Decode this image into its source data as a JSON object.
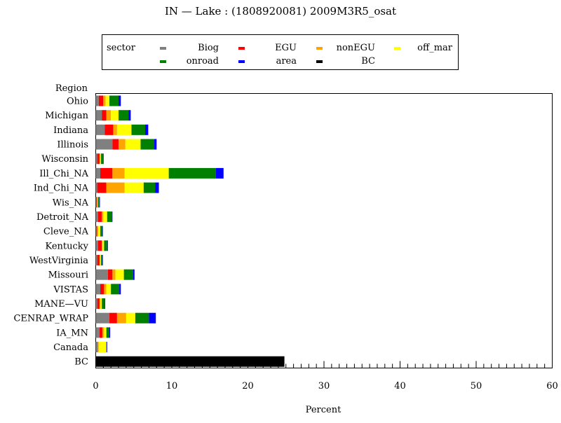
{
  "chart_data": {
    "type": "bar",
    "stacked": true,
    "orientation": "horizontal",
    "title": "IN — Lake : (1808920081) 2009M3R5_osat",
    "xlabel": "Percent",
    "ylabel": "Region",
    "xlim": [
      0,
      60
    ],
    "xticks": [
      0,
      10,
      20,
      30,
      40,
      50,
      60
    ],
    "legend": {
      "title": "sector",
      "position": "top"
    },
    "categories": [
      "Ohio",
      "Michigan",
      "Indiana",
      "Illinois",
      "Wisconsin",
      "Ill_Chi_NA",
      "Ind_Chi_NA",
      "Wis_NA",
      "Detroit_NA",
      "Cleve_NA",
      "Kentucky",
      "WestVirginia",
      "Missouri",
      "VISTAS",
      "MANE—VU",
      "CENRAP_WRAP",
      "IA_MN",
      "Canada",
      "BC"
    ],
    "series": [
      {
        "name": "Biog",
        "color": "#808080",
        "values": [
          0.4,
          0.8,
          1.2,
          2.2,
          0.2,
          0.6,
          0.2,
          0.1,
          0.3,
          0.1,
          0.3,
          0.2,
          1.6,
          0.6,
          0.2,
          1.8,
          0.5,
          0.3,
          0
        ]
      },
      {
        "name": "EGU",
        "color": "#ff0000",
        "values": [
          0.6,
          0.6,
          1.1,
          0.8,
          0.3,
          1.6,
          1.2,
          0.1,
          0.5,
          0.1,
          0.5,
          0.3,
          0.6,
          0.5,
          0.3,
          1.0,
          0.4,
          0,
          0
        ]
      },
      {
        "name": "nonEGU",
        "color": "#ffa500",
        "values": [
          0.3,
          0.6,
          0.5,
          0.9,
          0.1,
          1.6,
          2.4,
          0,
          0.2,
          0.1,
          0.1,
          0.1,
          0.4,
          0.3,
          0.1,
          1.2,
          0.2,
          0.1,
          0
        ]
      },
      {
        "name": "off_mar",
        "color": "#ffff00",
        "values": [
          0.5,
          1.0,
          1.9,
          2.0,
          0.1,
          5.8,
          2.5,
          0.1,
          0.5,
          0.3,
          0.2,
          0.1,
          1.1,
          0.6,
          0.2,
          1.2,
          0.3,
          1.0,
          0
        ]
      },
      {
        "name": "onroad",
        "color": "#008000",
        "values": [
          1.2,
          1.3,
          1.8,
          1.8,
          0.3,
          6.2,
          1.5,
          0.2,
          0.6,
          0.3,
          0.4,
          0.2,
          1.2,
          1.1,
          0.4,
          1.8,
          0.4,
          0,
          0
        ]
      },
      {
        "name": "area",
        "color": "#0000ff",
        "values": [
          0.3,
          0.3,
          0.4,
          0.3,
          0.05,
          1.0,
          0.5,
          0.05,
          0.1,
          0.05,
          0.1,
          0.05,
          0.2,
          0.2,
          0.05,
          0.9,
          0.1,
          0.1,
          0
        ]
      },
      {
        "name": "BC",
        "color": "#000000",
        "values": [
          0,
          0,
          0,
          0,
          0,
          0,
          0,
          0,
          0,
          0,
          0,
          0,
          0,
          0,
          0,
          0,
          0,
          0,
          24.8
        ]
      }
    ]
  }
}
